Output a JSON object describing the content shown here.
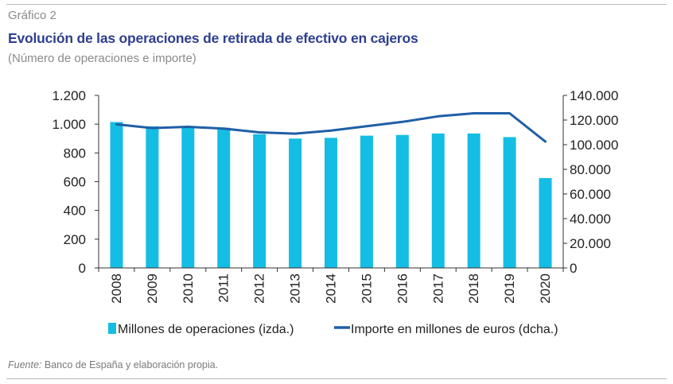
{
  "header": {
    "figure_label": "Gráfico 2",
    "title": "Evolución de las operaciones de retirada de efectivo en cajeros",
    "subtitle": "(Número de operaciones e importe)"
  },
  "footer": {
    "source_label": "Fuente:",
    "source_text": "Banco de España y elaboración propia."
  },
  "colors": {
    "bars": "#14bde3",
    "line": "#1f5fa6",
    "title": "#2e3f8f"
  },
  "chart_data": {
    "type": "bar",
    "categories": [
      "2008",
      "2009",
      "2010",
      "2011",
      "2012",
      "2013",
      "2014",
      "2015",
      "2016",
      "2017",
      "2018",
      "2019",
      "2020"
    ],
    "series": [
      {
        "name": "Millones de operaciones (izda.)",
        "type": "bar",
        "axis": "left",
        "values": [
          1015,
          985,
          985,
          975,
          930,
          900,
          905,
          920,
          925,
          935,
          935,
          910,
          625
        ]
      },
      {
        "name": "Importe en millones de euros (dcha.)",
        "type": "line",
        "axis": "right",
        "values": [
          116500,
          113500,
          114500,
          113000,
          110000,
          109000,
          111500,
          115000,
          118500,
          123000,
          125500,
          125500,
          102500
        ]
      }
    ],
    "y_left": {
      "ylim": [
        0,
        1200
      ],
      "ticks": [
        0,
        200,
        400,
        600,
        800,
        1000,
        1200
      ],
      "tick_labels": [
        "0",
        "200",
        "400",
        "600",
        "800",
        "1.000",
        "1.200"
      ]
    },
    "y_right": {
      "ylim": [
        0,
        140000
      ],
      "ticks": [
        0,
        20000,
        40000,
        60000,
        80000,
        100000,
        120000,
        140000
      ],
      "tick_labels": [
        "0",
        "20.000",
        "40.000",
        "60.000",
        "80.000",
        "100.000",
        "120.000",
        "140.000"
      ]
    },
    "grid": false,
    "legend_position": "bottom"
  }
}
